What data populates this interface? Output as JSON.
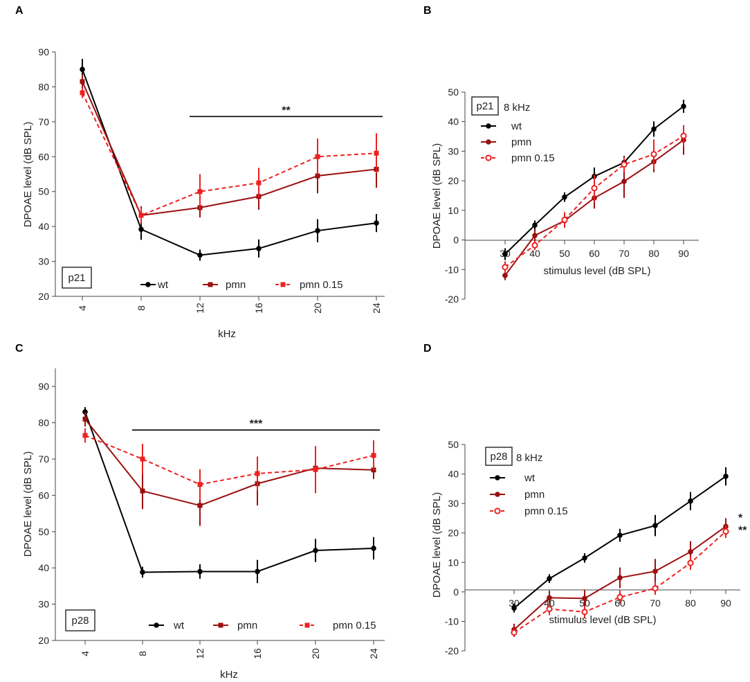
{
  "colors": {
    "wt": "#000000",
    "pmn": "#9b0f0f",
    "pmn015": "#ee2020",
    "axis": "#444444"
  },
  "chart_data": [
    {
      "panel": "A",
      "type": "line",
      "box_label": "p21",
      "xlabel": "kHz",
      "ylabel": "DPOAE level (dB SPL)",
      "x": [
        4,
        8,
        12,
        16,
        20,
        24
      ],
      "xticks": [
        "4",
        "8",
        "12",
        "16",
        "20",
        "24"
      ],
      "ylim": [
        20,
        90
      ],
      "yticks": [
        20,
        30,
        40,
        50,
        60,
        70,
        80,
        90
      ],
      "significance": {
        "label": "**",
        "from": 12,
        "to": 24,
        "y": 71.5
      },
      "series": [
        {
          "name": "wt",
          "marker": "circle",
          "dash": false,
          "values": [
            85,
            39.2,
            31.8,
            33.7,
            38.8,
            41
          ],
          "errors": [
            3,
            3,
            1.6,
            2.6,
            3.3,
            2.6
          ]
        },
        {
          "name": "pmn",
          "marker": "square",
          "dash": false,
          "values": [
            81.5,
            43.2,
            45.4,
            48.6,
            54.5,
            56.4
          ],
          "errors": [
            2,
            2.6,
            2.8,
            3.8,
            5,
            5.3
          ]
        },
        {
          "name": "pmn 0.15",
          "marker": "square",
          "dash": true,
          "values": [
            78.3,
            43.2,
            50,
            52.5,
            60,
            61
          ],
          "errors": [
            1.5,
            2,
            5,
            4.3,
            5.2,
            5.7
          ]
        }
      ],
      "legend": [
        "wt",
        "pmn",
        "pmn 0.15"
      ]
    },
    {
      "panel": "B",
      "type": "line",
      "box_label": "p21",
      "subtitle": "8 kHz",
      "xlabel": "stimulus level (dB SPL)",
      "ylabel": "DPOAE level (dB SPL)",
      "x": [
        30,
        40,
        50,
        60,
        70,
        80,
        90
      ],
      "xticks": [
        "30",
        "40",
        "50",
        "60",
        "70",
        "80",
        "90"
      ],
      "ylim": [
        -20,
        50
      ],
      "yticks": [
        -20,
        -10,
        0,
        10,
        20,
        30,
        40,
        50
      ],
      "series": [
        {
          "name": "wt",
          "marker": "circle",
          "dash": false,
          "values": [
            -4.8,
            5,
            14.5,
            21.5,
            26.2,
            37.5,
            45.2
          ],
          "errors": [
            2,
            1.6,
            1.6,
            3,
            2.2,
            2.6,
            2.2
          ]
        },
        {
          "name": "pmn",
          "marker": "circle",
          "dash": false,
          "values": [
            -12,
            1.5,
            6.5,
            14.2,
            19.8,
            26.5,
            33.8
          ],
          "errors": [
            1.6,
            2,
            2.4,
            3.6,
            5.6,
            3.6,
            5
          ]
        },
        {
          "name": "pmn 0.15",
          "marker": "open-circle",
          "dash": true,
          "values": [
            -9.2,
            -1.8,
            6.8,
            17.5,
            25.5,
            29,
            35.2
          ],
          "errors": [
            2,
            1.6,
            2.6,
            4.6,
            2.6,
            5,
            3.6
          ]
        }
      ],
      "legend": [
        "wt",
        "pmn",
        "pmn 0.15"
      ]
    },
    {
      "panel": "C",
      "type": "line",
      "box_label": "p28",
      "xlabel": "kHz",
      "ylabel": "DPOAE level (dB SPL)",
      "x": [
        4,
        8,
        12,
        16,
        20,
        24
      ],
      "xticks": [
        "4",
        "8",
        "12",
        "16",
        "20",
        "24"
      ],
      "ylim": [
        20,
        95
      ],
      "yticks": [
        20,
        30,
        40,
        50,
        60,
        70,
        80,
        90
      ],
      "significance": {
        "label": "***",
        "from": 8,
        "to": 24,
        "y": 78
      },
      "series": [
        {
          "name": "wt",
          "marker": "circle",
          "dash": false,
          "values": [
            83,
            38.8,
            39,
            39,
            44.8,
            45.4
          ],
          "errors": [
            1.3,
            1.5,
            2,
            3.2,
            3.2,
            3.1
          ]
        },
        {
          "name": "pmn",
          "marker": "square",
          "dash": false,
          "values": [
            81,
            61.2,
            57.2,
            63.2,
            67.5,
            67
          ],
          "errors": [
            2,
            5,
            5.6,
            6,
            4.2,
            2.5
          ]
        },
        {
          "name": "pmn 0.15",
          "marker": "square",
          "dash": true,
          "values": [
            76.5,
            70,
            63,
            66,
            67.1,
            71
          ],
          "errors": [
            2,
            4.2,
            4.2,
            4.7,
            6.5,
            4.2
          ]
        }
      ],
      "legend": [
        "wt",
        "pmn",
        "pmn 0.15"
      ]
    },
    {
      "panel": "D",
      "type": "line",
      "box_label": "p28",
      "subtitle": "8 kHz",
      "xlabel": "stimulus level (dB SPL)",
      "ylabel": "DPOAE level (dB SPL)",
      "x": [
        30,
        40,
        50,
        60,
        70,
        80,
        90
      ],
      "xticks": [
        "30",
        "40",
        "50",
        "60",
        "70",
        "80",
        "90"
      ],
      "ylim": [
        -20,
        50
      ],
      "yticks": [
        -20,
        -10,
        0,
        10,
        20,
        30,
        40,
        50
      ],
      "significance_labels": [
        "*",
        "**"
      ],
      "series": [
        {
          "name": "wt",
          "marker": "circle",
          "dash": false,
          "values": [
            -5.5,
            4.5,
            11.5,
            19.2,
            22.5,
            30.8,
            39.2
          ],
          "errors": [
            1.5,
            1.5,
            1.6,
            2.2,
            3.6,
            3.1,
            3.1
          ]
        },
        {
          "name": "pmn",
          "marker": "circle",
          "dash": false,
          "values": [
            -12.8,
            -2,
            -2.2,
            4.8,
            7,
            13.6,
            22.2
          ],
          "errors": [
            2,
            2.3,
            3,
            3.5,
            4.2,
            3.6,
            2.8
          ]
        },
        {
          "name": "pmn 0.15",
          "marker": "open-circle",
          "dash": true,
          "values": [
            -13.8,
            -5.8,
            -6.8,
            -1.8,
            1.2,
            9.8,
            20.5
          ],
          "errors": [
            1.5,
            2.1,
            2,
            2.2,
            2.2,
            2.3,
            2.2
          ]
        }
      ],
      "legend": [
        "wt",
        "pmn",
        "pmn 0.15"
      ]
    }
  ]
}
